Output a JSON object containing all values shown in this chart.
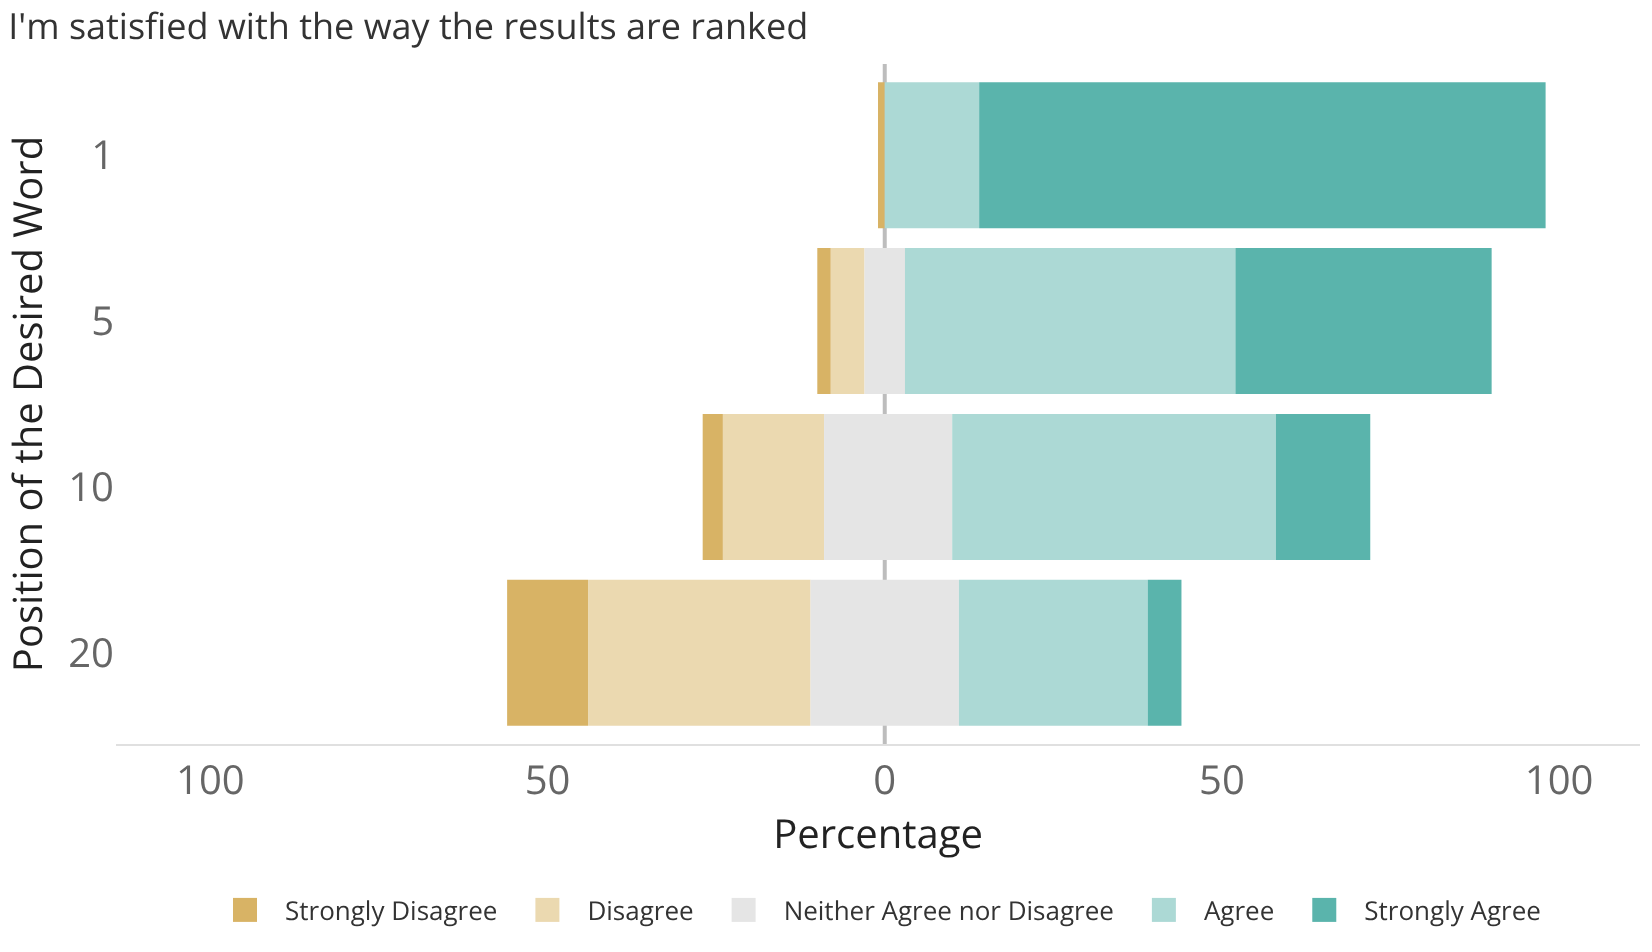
{
  "chart_data": {
    "type": "bar",
    "orientation": "horizontal",
    "title": "I'm satisfied with the way the results are ranked",
    "xlabel": "Percentage",
    "ylabel": "Position of the Desired Word",
    "categories": [
      "1",
      "5",
      "10",
      "20"
    ],
    "series": [
      {
        "name": "Strongly Disagree",
        "color": "#d8b365",
        "values": [
          1,
          2,
          3,
          12
        ],
        "base": [
          -1,
          -10,
          -27,
          -56
        ]
      },
      {
        "name": "Disagree",
        "color": "#ebd9b0",
        "values": [
          null,
          5,
          15,
          33
        ],
        "base": [
          null,
          -8,
          -24,
          -44
        ]
      },
      {
        "name": "Neither Agree nor Disagree",
        "color": "#e5e5e5",
        "values": [
          null,
          6,
          19,
          22
        ],
        "base": [
          null,
          -3,
          -9,
          -11
        ]
      },
      {
        "name": "Agree",
        "color": "#acd9d5",
        "values": [
          14,
          49,
          48,
          28
        ],
        "base": [
          0,
          3,
          10,
          11
        ]
      },
      {
        "name": "Strongly Agree",
        "color": "#5ab4ac",
        "values": [
          84,
          38,
          14,
          5
        ],
        "base": [
          14,
          52,
          58,
          39
        ]
      }
    ],
    "xlim": [
      -114,
      112
    ],
    "xticks": [
      {
        "value": -100,
        "label": "100"
      },
      {
        "value": -50,
        "label": "50"
      },
      0,
      50,
      100
    ],
    "ref_lines": [
      {
        "axis": "x",
        "value": 0,
        "color": "#bdbdbd"
      }
    ],
    "grid": false,
    "legend": "bottom"
  }
}
